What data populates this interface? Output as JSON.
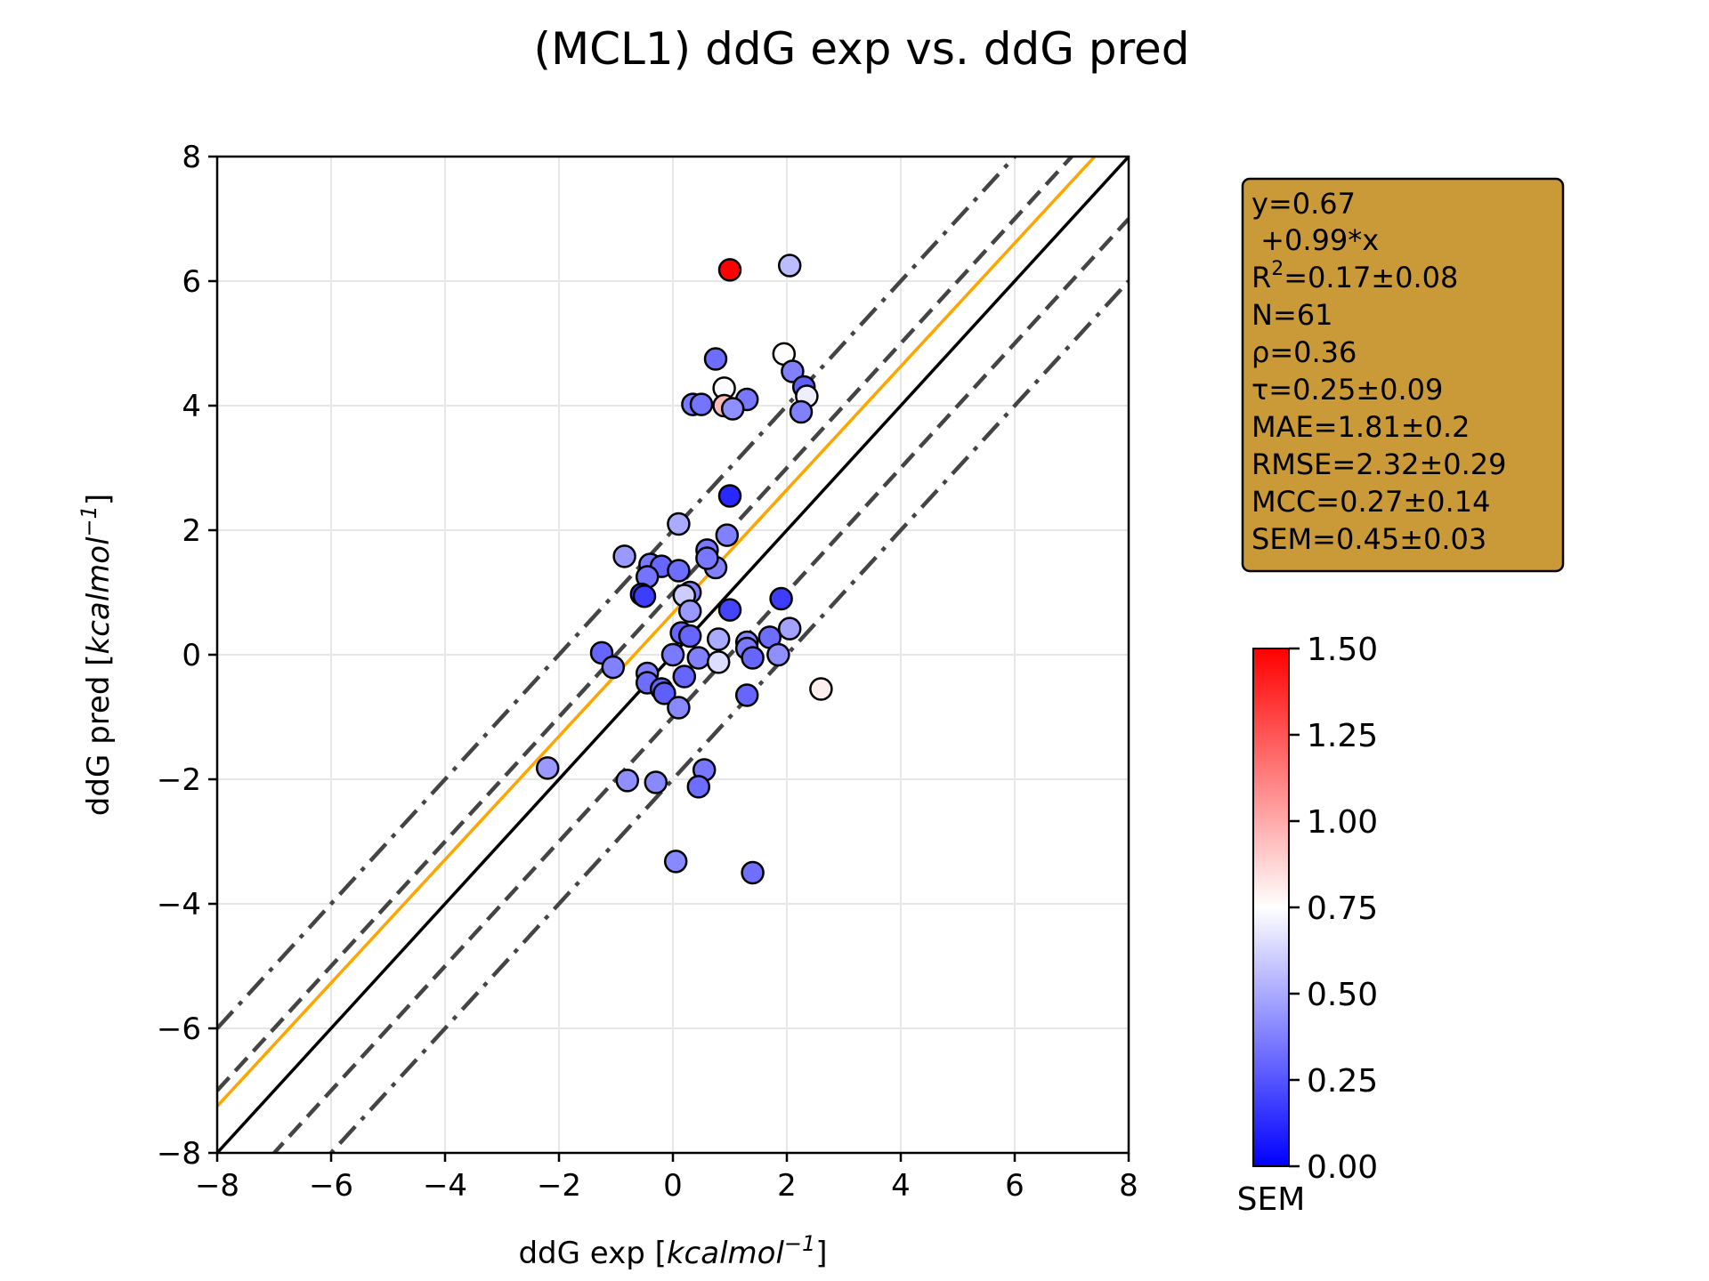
{
  "chart_data": {
    "type": "scatter",
    "title": "(MCL1) ddG exp vs. ddG pred",
    "xlabel_prefix": "ddG exp [",
    "ylabel_prefix": "ddG pred [",
    "unit_main": "kcalmol",
    "unit_exp": "−1",
    "unit_close": "]",
    "xlim": [
      -8,
      8
    ],
    "ylim": [
      -8,
      8
    ],
    "xticks": [
      -8,
      -6,
      -4,
      -2,
      0,
      2,
      4,
      6,
      8
    ],
    "yticks": [
      -8,
      -6,
      -4,
      -2,
      0,
      2,
      4,
      6,
      8
    ],
    "xtick_labels": [
      "−8",
      "−6",
      "−4",
      "−2",
      "0",
      "2",
      "4",
      "6",
      "8"
    ],
    "ytick_labels": [
      "−8",
      "−6",
      "−4",
      "−2",
      "0",
      "2",
      "4",
      "6",
      "8"
    ],
    "grid": true,
    "fit_line": {
      "intercept": 0.67,
      "slope": 0.99,
      "color": "#ffa500"
    },
    "identity_line": {
      "color": "#000000"
    },
    "dashed_offsets": [
      1,
      -1
    ],
    "dashdot_offsets": [
      2,
      -2
    ],
    "guide_color": "#444444",
    "stats": {
      "lines": [
        "y=0.67",
        " +0.99*x",
        "R",
        "=0.17±0.08",
        "N=61",
        "ρ=0.36",
        "τ=0.25±0.09",
        "MAE=1.81±0.2",
        "RMSE=2.32±0.29",
        "MCC=0.27±0.14",
        "SEM=0.45±0.03"
      ],
      "r2_sup": "2",
      "box_color": "#c99a37"
    },
    "colorbar": {
      "label": "SEM",
      "range": [
        0,
        1.5
      ],
      "ticks": [
        0,
        0.25,
        0.5,
        0.75,
        1.0,
        1.25,
        1.5
      ],
      "tick_labels": [
        "0.00",
        "0.25",
        "0.50",
        "0.75",
        "1.00",
        "1.25",
        "1.50"
      ],
      "cmap": "bwr"
    },
    "points": [
      {
        "x": 1.0,
        "y": 6.18,
        "sem": 1.5
      },
      {
        "x": 2.05,
        "y": 6.25,
        "sem": 0.55
      },
      {
        "x": 1.95,
        "y": 4.83,
        "sem": 0.76
      },
      {
        "x": 0.75,
        "y": 4.75,
        "sem": 0.32
      },
      {
        "x": 2.1,
        "y": 4.55,
        "sem": 0.38
      },
      {
        "x": 2.3,
        "y": 4.3,
        "sem": 0.28
      },
      {
        "x": 0.9,
        "y": 4.28,
        "sem": 0.74
      },
      {
        "x": 2.35,
        "y": 4.15,
        "sem": 0.7
      },
      {
        "x": 1.3,
        "y": 4.1,
        "sem": 0.35
      },
      {
        "x": 0.35,
        "y": 4.02,
        "sem": 0.36
      },
      {
        "x": 0.5,
        "y": 4.02,
        "sem": 0.34
      },
      {
        "x": 0.9,
        "y": 4.0,
        "sem": 0.95
      },
      {
        "x": 1.05,
        "y": 3.95,
        "sem": 0.42
      },
      {
        "x": 2.25,
        "y": 3.9,
        "sem": 0.38
      },
      {
        "x": 1.0,
        "y": 2.55,
        "sem": 0.12
      },
      {
        "x": 0.1,
        "y": 2.1,
        "sem": 0.5
      },
      {
        "x": 0.95,
        "y": 1.92,
        "sem": 0.38
      },
      {
        "x": 0.6,
        "y": 1.68,
        "sem": 0.35
      },
      {
        "x": -0.85,
        "y": 1.58,
        "sem": 0.45
      },
      {
        "x": -0.4,
        "y": 1.45,
        "sem": 0.36
      },
      {
        "x": -0.2,
        "y": 1.42,
        "sem": 0.3
      },
      {
        "x": 0.75,
        "y": 1.4,
        "sem": 0.38
      },
      {
        "x": 0.1,
        "y": 1.35,
        "sem": 0.32
      },
      {
        "x": -0.45,
        "y": 1.25,
        "sem": 0.34
      },
      {
        "x": 0.3,
        "y": 1.0,
        "sem": 0.38
      },
      {
        "x": 0.2,
        "y": 0.95,
        "sem": 0.6
      },
      {
        "x": -0.55,
        "y": 0.97,
        "sem": 0.15
      },
      {
        "x": -0.5,
        "y": 0.94,
        "sem": 0.18
      },
      {
        "x": 1.9,
        "y": 0.9,
        "sem": 0.18
      },
      {
        "x": 1.0,
        "y": 0.72,
        "sem": 0.2
      },
      {
        "x": 0.3,
        "y": 0.7,
        "sem": 0.45
      },
      {
        "x": 2.05,
        "y": 0.42,
        "sem": 0.48
      },
      {
        "x": 0.15,
        "y": 0.35,
        "sem": 0.3
      },
      {
        "x": 0.3,
        "y": 0.3,
        "sem": 0.3
      },
      {
        "x": 1.7,
        "y": 0.28,
        "sem": 0.32
      },
      {
        "x": 0.8,
        "y": 0.25,
        "sem": 0.5
      },
      {
        "x": 1.3,
        "y": 0.2,
        "sem": 0.4
      },
      {
        "x": 1.3,
        "y": 0.1,
        "sem": 0.36
      },
      {
        "x": -1.25,
        "y": 0.03,
        "sem": 0.3
      },
      {
        "x": 0.0,
        "y": 0.0,
        "sem": 0.36
      },
      {
        "x": 1.85,
        "y": 0.0,
        "sem": 0.42
      },
      {
        "x": 1.4,
        "y": -0.05,
        "sem": 0.3
      },
      {
        "x": 0.45,
        "y": -0.05,
        "sem": 0.38
      },
      {
        "x": 0.8,
        "y": -0.12,
        "sem": 0.65
      },
      {
        "x": -1.05,
        "y": -0.2,
        "sem": 0.38
      },
      {
        "x": -0.45,
        "y": -0.3,
        "sem": 0.38
      },
      {
        "x": 0.2,
        "y": -0.35,
        "sem": 0.3
      },
      {
        "x": -0.45,
        "y": -0.45,
        "sem": 0.32
      },
      {
        "x": -0.2,
        "y": -0.55,
        "sem": 0.3
      },
      {
        "x": -0.15,
        "y": -0.62,
        "sem": 0.28
      },
      {
        "x": 1.3,
        "y": -0.65,
        "sem": 0.3
      },
      {
        "x": 0.1,
        "y": -0.85,
        "sem": 0.4
      },
      {
        "x": 2.6,
        "y": -0.55,
        "sem": 0.8
      },
      {
        "x": -2.2,
        "y": -1.82,
        "sem": 0.45
      },
      {
        "x": 0.55,
        "y": -1.85,
        "sem": 0.35
      },
      {
        "x": -0.8,
        "y": -2.02,
        "sem": 0.42
      },
      {
        "x": -0.3,
        "y": -2.05,
        "sem": 0.4
      },
      {
        "x": 0.45,
        "y": -2.12,
        "sem": 0.32
      },
      {
        "x": 0.05,
        "y": -3.32,
        "sem": 0.4
      },
      {
        "x": 1.4,
        "y": -3.5,
        "sem": 0.33
      },
      {
        "x": 0.6,
        "y": 1.55,
        "sem": 0.35
      }
    ]
  }
}
